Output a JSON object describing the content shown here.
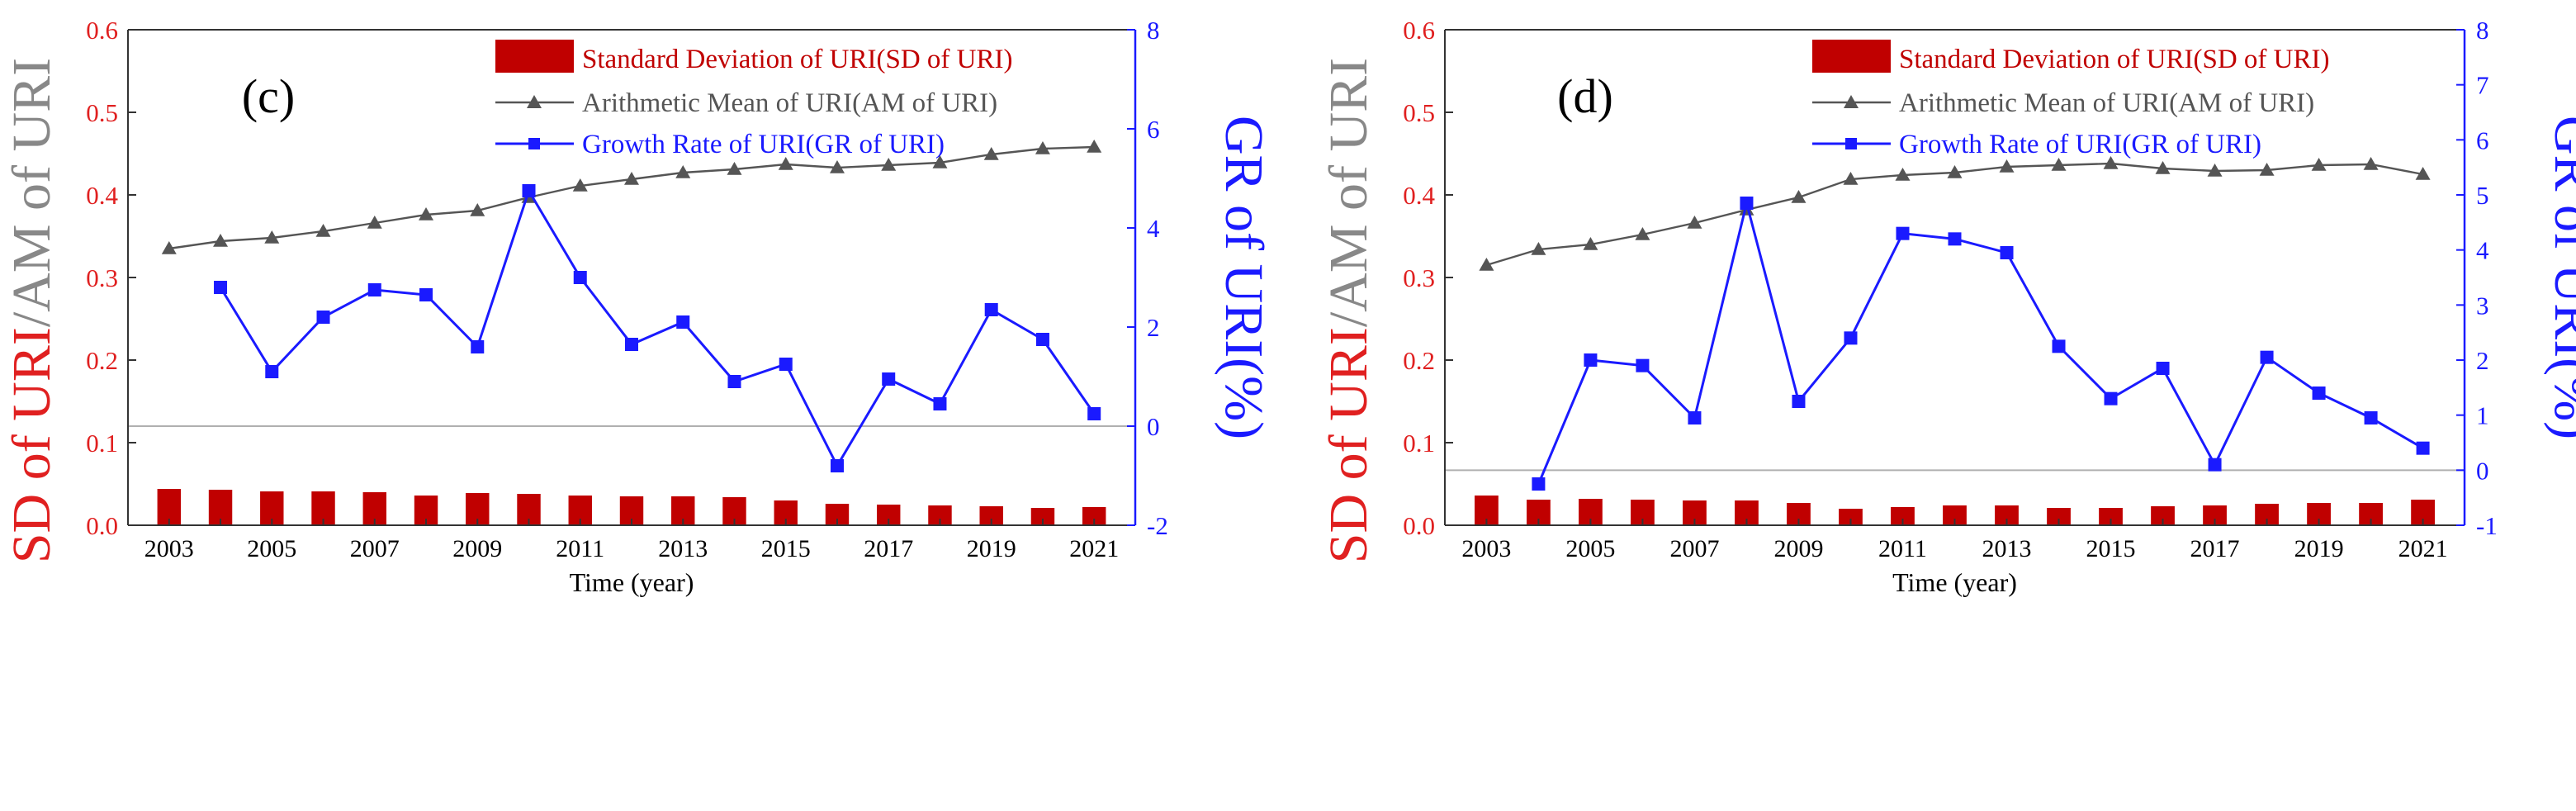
{
  "colors": {
    "sd": "#c00000",
    "am": "#555555",
    "gr": "#1a1aff",
    "axis_left_text": "#e02020",
    "axis_left_tick": "#e02020",
    "axis_right": "#1a1aff",
    "frame": "#333333",
    "zero_line": "#b0b0b0",
    "title_gray": "#888888"
  },
  "legend": {
    "sd_label": "Standard Deviation of URI(SD of URI)",
    "am_label": "Arithmetic Mean of URI(AM of URI)",
    "gr_label": "Growth Rate of URI(GR of URI)"
  },
  "axis_titles": {
    "left_part1": "SD of URI",
    "left_sep": "/",
    "left_part2": "AM of URI",
    "right": "GR of URI(%)",
    "x": "Time (year)"
  },
  "chart_data": [
    {
      "panel": "(c)",
      "type": "bar+line",
      "xlabel": "Time (year)",
      "ylabel_left": "SD of URI/AM of URI",
      "ylabel_right": "GR of URI(%)",
      "years": [
        2003,
        2004,
        2005,
        2006,
        2007,
        2008,
        2009,
        2010,
        2011,
        2012,
        2013,
        2014,
        2015,
        2016,
        2017,
        2018,
        2019,
        2020,
        2021
      ],
      "x_tick_labels": [
        "2003",
        "2005",
        "2007",
        "2009",
        "2011",
        "2013",
        "2015",
        "2017",
        "2019",
        "2021"
      ],
      "left_ylim": [
        0,
        0.6
      ],
      "left_ticks": [
        "0.0",
        "0.1",
        "0.2",
        "0.3",
        "0.4",
        "0.5",
        "0.6"
      ],
      "right_ylim": [
        -2,
        8
      ],
      "right_ticks": [
        "-2",
        "0",
        "2",
        "4",
        "6",
        "8"
      ],
      "series": [
        {
          "name": "Standard Deviation of URI(SD of URI)",
          "type": "bar",
          "axis": "left",
          "values": [
            0.044,
            0.043,
            0.041,
            0.041,
            0.04,
            0.036,
            0.039,
            0.038,
            0.036,
            0.035,
            0.035,
            0.034,
            0.03,
            0.026,
            0.025,
            0.024,
            0.023,
            0.021,
            0.022
          ]
        },
        {
          "name": "Arithmetic Mean of URI(AM of URI)",
          "type": "line",
          "axis": "left",
          "marker": "triangle",
          "values": [
            0.335,
            0.344,
            0.348,
            0.356,
            0.366,
            0.376,
            0.381,
            0.397,
            0.411,
            0.419,
            0.427,
            0.431,
            0.437,
            0.433,
            0.436,
            0.439,
            0.449,
            0.456,
            0.458
          ]
        },
        {
          "name": "Growth Rate of URI(GR of URI)",
          "type": "line",
          "axis": "right",
          "marker": "square",
          "years": [
            2004,
            2005,
            2006,
            2007,
            2008,
            2009,
            2010,
            2011,
            2012,
            2013,
            2014,
            2015,
            2016,
            2017,
            2018,
            2019,
            2020,
            2021
          ],
          "values": [
            2.8,
            1.1,
            2.2,
            2.75,
            2.65,
            1.6,
            4.75,
            3.0,
            1.65,
            2.1,
            0.9,
            1.25,
            -0.8,
            0.95,
            0.45,
            2.35,
            1.75,
            0.25
          ]
        }
      ]
    },
    {
      "panel": "(d)",
      "type": "bar+line",
      "xlabel": "Time (year)",
      "ylabel_left": "SD of URI/AM of URI",
      "ylabel_right": "GR of URI(%)",
      "years": [
        2003,
        2004,
        2005,
        2006,
        2007,
        2008,
        2009,
        2010,
        2011,
        2012,
        2013,
        2014,
        2015,
        2016,
        2017,
        2018,
        2019,
        2020,
        2021
      ],
      "x_tick_labels": [
        "2003",
        "2005",
        "2007",
        "2009",
        "2011",
        "2013",
        "2015",
        "2017",
        "2019",
        "2021"
      ],
      "left_ylim": [
        0,
        0.6
      ],
      "left_ticks": [
        "0.0",
        "0.1",
        "0.2",
        "0.3",
        "0.4",
        "0.5",
        "0.6"
      ],
      "right_ylim": [
        -1,
        8
      ],
      "right_ticks": [
        "-1",
        "0",
        "1",
        "2",
        "3",
        "4",
        "5",
        "6",
        "7",
        "8"
      ],
      "series": [
        {
          "name": "Standard Deviation of URI(SD of URI)",
          "type": "bar",
          "axis": "left",
          "values": [
            0.036,
            0.031,
            0.032,
            0.031,
            0.03,
            0.03,
            0.027,
            0.02,
            0.022,
            0.024,
            0.024,
            0.021,
            0.021,
            0.023,
            0.024,
            0.026,
            0.027,
            0.027,
            0.031
          ]
        },
        {
          "name": "Arithmetic Mean of URI(AM of URI)",
          "type": "line",
          "axis": "left",
          "marker": "triangle",
          "values": [
            0.315,
            0.334,
            0.34,
            0.352,
            0.366,
            0.382,
            0.397,
            0.419,
            0.424,
            0.427,
            0.434,
            0.436,
            0.438,
            0.432,
            0.429,
            0.43,
            0.436,
            0.437,
            0.425
          ]
        },
        {
          "name": "Growth Rate of URI(GR of URI)",
          "type": "line",
          "axis": "right",
          "marker": "square",
          "years": [
            2004,
            2005,
            2006,
            2007,
            2008,
            2009,
            2010,
            2011,
            2012,
            2013,
            2014,
            2015,
            2016,
            2017,
            2018,
            2019,
            2020,
            2021
          ],
          "values": [
            -0.25,
            2.0,
            1.9,
            0.95,
            4.85,
            1.25,
            2.4,
            4.3,
            4.2,
            3.95,
            2.25,
            1.3,
            1.85,
            0.1,
            2.05,
            1.4,
            0.95,
            0.4
          ]
        }
      ]
    }
  ]
}
